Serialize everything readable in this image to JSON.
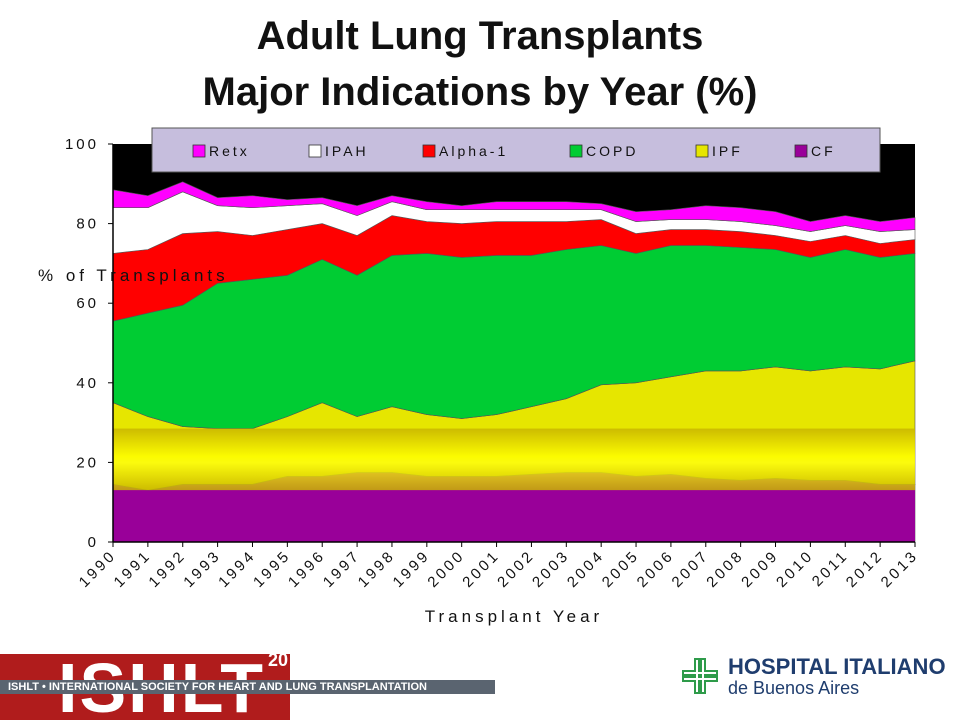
{
  "header": {
    "title_line1": "Adult Lung Transplants",
    "title_line2": "Major Indications by Year (%)"
  },
  "footer": {
    "ishlt_logo": "ISHLT",
    "ishlt_year": "20",
    "ishlt_band": "ISHLT • INTERNATIONAL SOCIETY FOR HEART AND LUNG TRANSPLANTATION",
    "hospital_name": "HOSPITAL ITALIANO",
    "hospital_sub": "de Buenos Aires"
  },
  "chart_data": {
    "type": "area",
    "stacked": true,
    "title": "",
    "xlabel": "Transplant Year",
    "ylabel": "% of Transplants",
    "ylim": [
      0,
      100
    ],
    "yticks": [
      0,
      20,
      40,
      60,
      80,
      100
    ],
    "x": [
      "1990",
      "1991",
      "1992",
      "1993",
      "1994",
      "1995",
      "1996",
      "1997",
      "1998",
      "1999",
      "2000",
      "2001",
      "2002",
      "2003",
      "2004",
      "2005",
      "2006",
      "2007",
      "2008",
      "2009",
      "2010",
      "2011",
      "2012",
      "2013"
    ],
    "legend_position": "top",
    "legend": [
      "Retx",
      "IPAH",
      "Alpha-1",
      "COPD",
      "IPF",
      "CF"
    ],
    "series": [
      {
        "name": "CF",
        "color": "#990099",
        "values": [
          14.5,
          13.0,
          14.5,
          14.5,
          14.5,
          16.5,
          16.5,
          17.5,
          17.5,
          16.5,
          16.5,
          16.5,
          17.0,
          17.5,
          17.5,
          16.5,
          17.0,
          16.0,
          15.5,
          16.0,
          15.5,
          15.5,
          14.5,
          14.5
        ]
      },
      {
        "name": "IPF",
        "color": "#e6e600",
        "values": [
          20.5,
          18.5,
          14.5,
          14.0,
          14.0,
          15.0,
          18.5,
          14.0,
          16.5,
          15.5,
          14.5,
          15.5,
          17.0,
          18.5,
          22.0,
          23.5,
          24.5,
          27.0,
          27.5,
          28.0,
          27.5,
          28.5,
          29.0,
          31.0
        ]
      },
      {
        "name": "COPD",
        "color": "#00cc33",
        "values": [
          20.5,
          26.0,
          30.5,
          36.5,
          37.5,
          35.5,
          36.0,
          35.5,
          38.0,
          40.5,
          40.5,
          40.0,
          38.0,
          37.5,
          35.0,
          32.5,
          33.0,
          31.5,
          31.0,
          29.5,
          28.5,
          29.5,
          28.0,
          27.0
        ]
      },
      {
        "name": "Alpha-1",
        "color": "#ff0000",
        "values": [
          17.0,
          16.0,
          18.0,
          13.0,
          11.0,
          11.5,
          9.0,
          10.0,
          10.0,
          8.0,
          8.5,
          8.5,
          8.5,
          7.0,
          6.5,
          5.0,
          4.0,
          4.0,
          4.0,
          3.5,
          4.0,
          3.5,
          3.5,
          3.5
        ]
      },
      {
        "name": "IPAH",
        "color": "#ffffff",
        "values": [
          11.5,
          10.5,
          10.5,
          6.5,
          7.0,
          6.0,
          5.0,
          5.0,
          3.5,
          3.0,
          3.5,
          3.0,
          3.0,
          3.0,
          2.5,
          3.0,
          2.5,
          2.5,
          2.5,
          2.5,
          2.5,
          2.5,
          3.0,
          2.5
        ]
      },
      {
        "name": "Retx",
        "color": "#ff00ff",
        "values": [
          4.5,
          3.0,
          2.5,
          2.0,
          3.0,
          1.5,
          1.5,
          2.5,
          1.5,
          2.0,
          1.0,
          2.0,
          2.0,
          2.0,
          1.5,
          2.5,
          2.5,
          3.5,
          3.5,
          3.5,
          2.5,
          2.5,
          2.5,
          3.0
        ]
      }
    ],
    "other_color": "#000000"
  },
  "colors": {
    "legend_bg": "#c6bedd",
    "overlay_band_top": "#ffff00",
    "overlay_band_edge": "#b8a800"
  }
}
